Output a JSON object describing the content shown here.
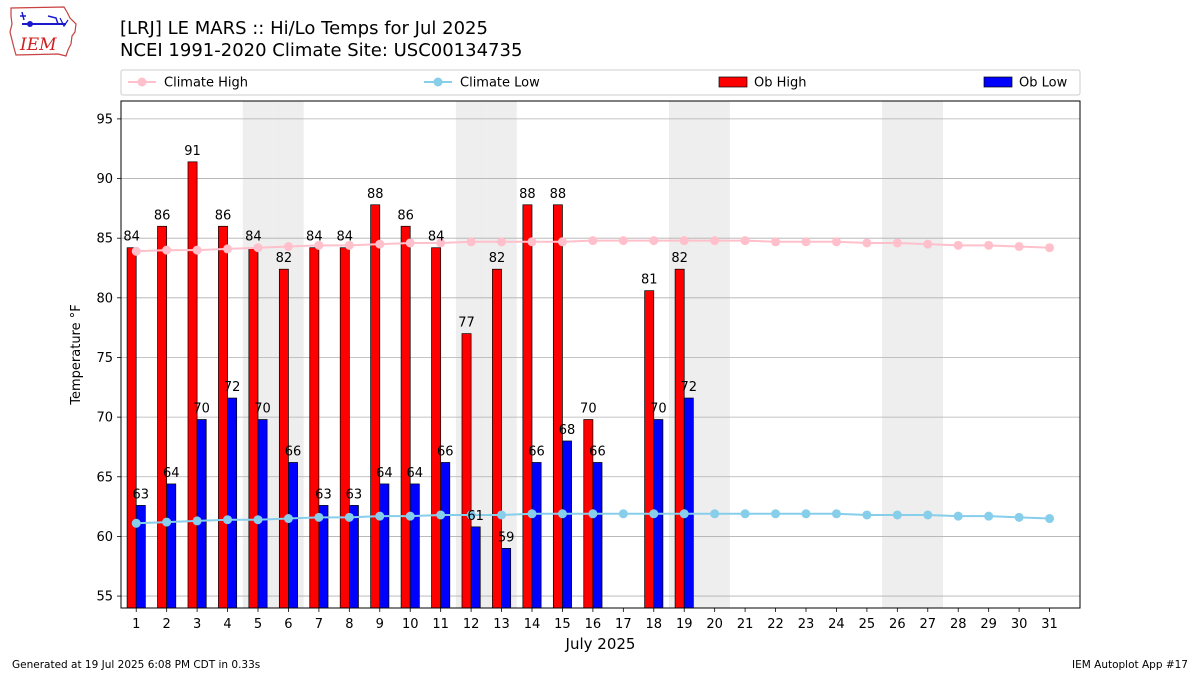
{
  "title_line1": "[LRJ] LE MARS :: Hi/Lo Temps for Jul 2025",
  "title_line2": "NCEI 1991-2020 Climate Site: USC00134735",
  "logo_text": "IEM",
  "footer_left": "Generated at 19 Jul 2025 6:08 PM CDT in 0.33s",
  "footer_right": "IEM Autoplot App #17",
  "chart_data": {
    "type": "bar",
    "xlabel": "July 2025",
    "ylabel": "Temperature °F",
    "ylim": [
      54,
      96.5
    ],
    "yticks": [
      55,
      60,
      65,
      70,
      75,
      80,
      85,
      90,
      95
    ],
    "grid": true,
    "legend_position": "top",
    "categories": [
      "1",
      "2",
      "3",
      "4",
      "5",
      "6",
      "7",
      "8",
      "9",
      "10",
      "11",
      "12",
      "13",
      "14",
      "15",
      "16",
      "17",
      "18",
      "19",
      "20",
      "21",
      "22",
      "23",
      "24",
      "25",
      "26",
      "27",
      "28",
      "29",
      "30",
      "31"
    ],
    "weekend_days": [
      5,
      6,
      12,
      13,
      19,
      20,
      26,
      27
    ],
    "series": [
      {
        "name": "Climate High",
        "kind": "line",
        "color": "#ffc0cb",
        "values": [
          83.9,
          84.0,
          84.0,
          84.1,
          84.2,
          84.3,
          84.4,
          84.4,
          84.5,
          84.6,
          84.6,
          84.7,
          84.7,
          84.7,
          84.7,
          84.8,
          84.8,
          84.8,
          84.8,
          84.8,
          84.8,
          84.7,
          84.7,
          84.7,
          84.6,
          84.6,
          84.5,
          84.4,
          84.4,
          84.3,
          84.2
        ]
      },
      {
        "name": "Climate Low",
        "kind": "line",
        "color": "#87ceeb",
        "values": [
          61.1,
          61.2,
          61.3,
          61.4,
          61.4,
          61.5,
          61.6,
          61.6,
          61.7,
          61.7,
          61.8,
          61.8,
          61.8,
          61.9,
          61.9,
          61.9,
          61.9,
          61.9,
          61.9,
          61.9,
          61.9,
          61.9,
          61.9,
          61.9,
          61.8,
          61.8,
          61.8,
          61.7,
          61.7,
          61.6,
          61.5
        ]
      },
      {
        "name": "Ob High",
        "kind": "bar",
        "color": "#ff0000",
        "values": [
          84,
          86,
          91,
          86,
          84,
          82,
          84,
          84,
          88,
          86,
          84,
          77,
          82,
          88,
          88,
          70,
          null,
          81,
          82,
          null,
          null,
          null,
          null,
          null,
          null,
          null,
          null,
          null,
          null,
          null,
          null
        ],
        "display_values": [
          84.2,
          86.0,
          91.4,
          86.0,
          84.2,
          82.4,
          84.2,
          84.2,
          87.8,
          86.0,
          84.2,
          77.0,
          82.4,
          87.8,
          87.8,
          69.8,
          null,
          80.6,
          82.4,
          null,
          null,
          null,
          null,
          null,
          null,
          null,
          null,
          null,
          null,
          null,
          null
        ]
      },
      {
        "name": "Ob Low",
        "kind": "bar",
        "color": "#0000ff",
        "values": [
          63,
          64,
          70,
          72,
          70,
          66,
          63,
          63,
          64,
          64,
          66,
          61,
          59,
          66,
          68,
          66,
          null,
          70,
          72,
          null,
          null,
          null,
          null,
          null,
          null,
          null,
          null,
          null,
          null,
          null,
          null
        ],
        "display_values": [
          62.6,
          64.4,
          69.8,
          71.6,
          69.8,
          66.2,
          62.6,
          62.6,
          64.4,
          64.4,
          66.2,
          60.8,
          59.0,
          66.2,
          68.0,
          66.2,
          null,
          69.8,
          71.6,
          null,
          null,
          null,
          null,
          null,
          null,
          null,
          null,
          null,
          null,
          null,
          null
        ]
      }
    ]
  }
}
